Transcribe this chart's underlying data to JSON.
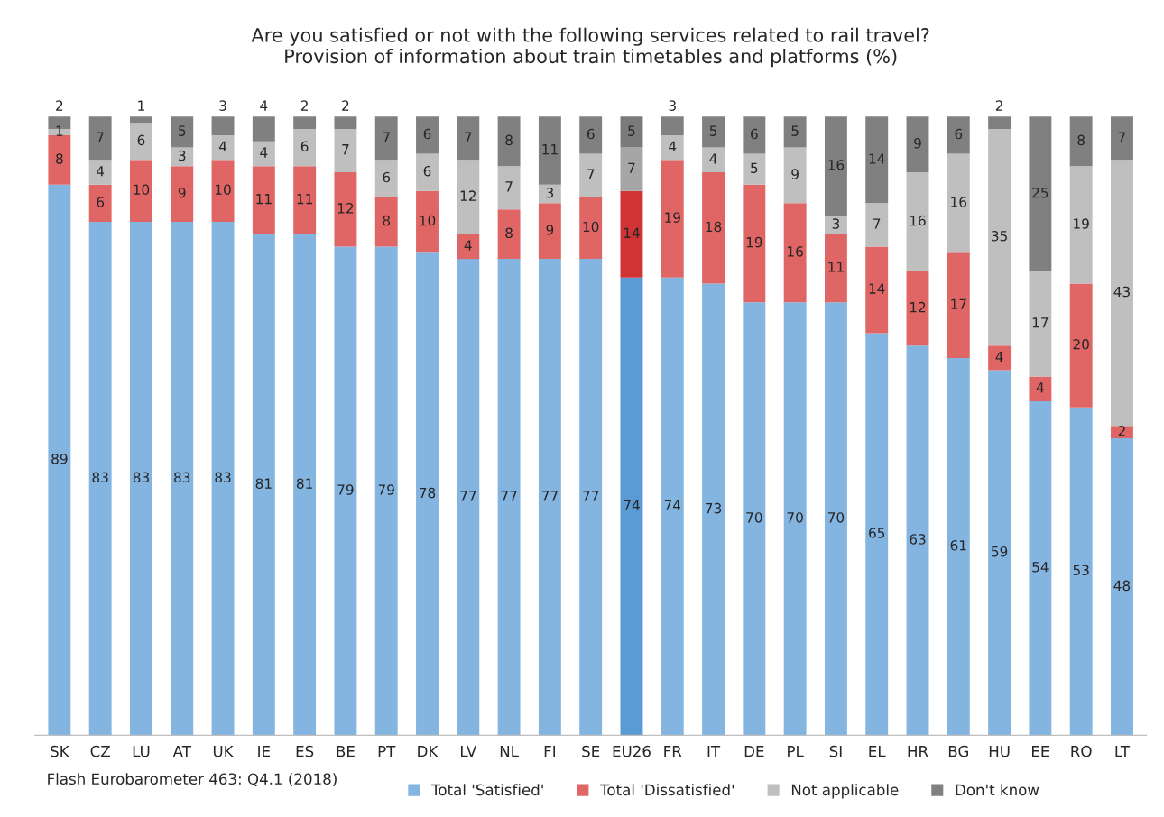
{
  "chart_data": {
    "type": "bar",
    "stacked": true,
    "data_labels": true,
    "legend": "bottom",
    "grid": false,
    "title": "Are you satisfied or not with the following services related to rail travel?\nProvision of information about train timetables and platforms (%)",
    "annotations": [
      "Flash Eurobarometer 463: Q4.1 (2018)"
    ],
    "categories": [
      "SK",
      "CZ",
      "LU",
      "AT",
      "UK",
      "IE",
      "ES",
      "BE",
      "PT",
      "DK",
      "LV",
      "NL",
      "FI",
      "SE",
      "EU26",
      "FR",
      "IT",
      "DE",
      "PL",
      "SI",
      "EL",
      "HR",
      "BG",
      "HU",
      "EE",
      "RO",
      "LT"
    ],
    "series": [
      {
        "name": "Total 'Satisfied'",
        "color": "#84b4e0",
        "colors": [
          "#84b4e0",
          "#84b4e0",
          "#84b4e0",
          "#84b4e0",
          "#84b4e0",
          "#84b4e0",
          "#84b4e0",
          "#84b4e0",
          "#84b4e0",
          "#84b4e0",
          "#84b4e0",
          "#84b4e0",
          "#84b4e0",
          "#84b4e0",
          "#5b9bd5",
          "#84b4e0",
          "#84b4e0",
          "#84b4e0",
          "#84b4e0",
          "#84b4e0",
          "#84b4e0",
          "#84b4e0",
          "#84b4e0",
          "#84b4e0",
          "#84b4e0",
          "#84b4e0",
          "#84b4e0"
        ],
        "values": [
          89,
          83,
          83,
          83,
          83,
          81,
          81,
          79,
          79,
          78,
          77,
          77,
          77,
          77,
          74,
          74,
          73,
          70,
          70,
          70,
          65,
          63,
          61,
          59,
          54,
          53,
          48
        ]
      },
      {
        "name": "Total 'Dissatisfied'",
        "color": "#e06666",
        "colors": [
          "#e06666",
          "#e06666",
          "#e06666",
          "#e06666",
          "#e06666",
          "#e06666",
          "#e06666",
          "#e06666",
          "#e06666",
          "#e06666",
          "#e06666",
          "#e06666",
          "#e06666",
          "#e06666",
          "#d13434",
          "#e06666",
          "#e06666",
          "#e06666",
          "#e06666",
          "#e06666",
          "#e06666",
          "#e06666",
          "#e06666",
          "#e06666",
          "#e06666",
          "#e06666",
          "#e06666"
        ],
        "values": [
          8,
          6,
          10,
          9,
          10,
          11,
          11,
          12,
          8,
          10,
          4,
          8,
          9,
          10,
          14,
          19,
          18,
          19,
          16,
          11,
          14,
          12,
          17,
          4,
          4,
          20,
          2
        ]
      },
      {
        "name": "Not applicable",
        "color": "#bfbfbf",
        "colors": [
          "#bfbfbf",
          "#bfbfbf",
          "#bfbfbf",
          "#bfbfbf",
          "#bfbfbf",
          "#bfbfbf",
          "#bfbfbf",
          "#bfbfbf",
          "#bfbfbf",
          "#bfbfbf",
          "#bfbfbf",
          "#bfbfbf",
          "#bfbfbf",
          "#bfbfbf",
          "#a6a6a6",
          "#bfbfbf",
          "#bfbfbf",
          "#bfbfbf",
          "#bfbfbf",
          "#bfbfbf",
          "#bfbfbf",
          "#bfbfbf",
          "#bfbfbf",
          "#bfbfbf",
          "#bfbfbf",
          "#bfbfbf",
          "#bfbfbf"
        ],
        "values": [
          1,
          4,
          6,
          3,
          4,
          4,
          6,
          7,
          6,
          6,
          12,
          7,
          3,
          7,
          7,
          4,
          4,
          5,
          9,
          3,
          7,
          16,
          16,
          35,
          17,
          19,
          43
        ]
      },
      {
        "name": "Don't know",
        "color": "#808080",
        "colors": [
          "#808080",
          "#808080",
          "#808080",
          "#808080",
          "#808080",
          "#808080",
          "#808080",
          "#808080",
          "#808080",
          "#808080",
          "#808080",
          "#808080",
          "#808080",
          "#808080",
          "#7a7a7a",
          "#808080",
          "#808080",
          "#808080",
          "#808080",
          "#808080",
          "#808080",
          "#808080",
          "#808080",
          "#808080",
          "#808080",
          "#808080",
          "#808080"
        ],
        "values": [
          2,
          7,
          1,
          5,
          3,
          4,
          2,
          2,
          7,
          6,
          7,
          8,
          11,
          6,
          5,
          3,
          5,
          6,
          5,
          16,
          14,
          9,
          6,
          2,
          25,
          8,
          7
        ]
      }
    ]
  }
}
